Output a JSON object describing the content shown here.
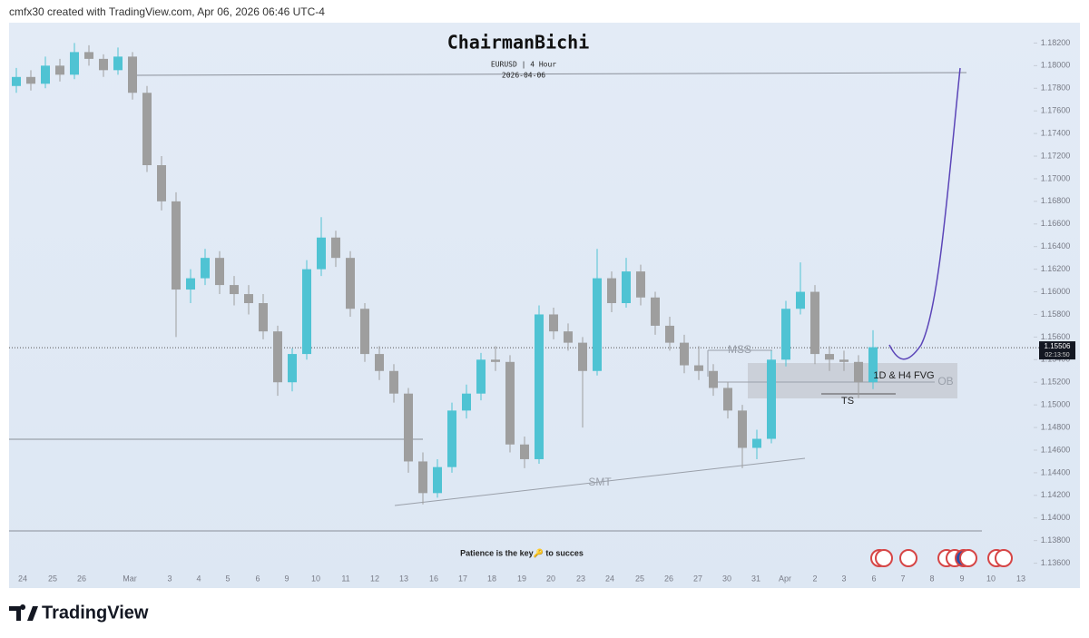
{
  "header": "cmfx30 created with TradingView.com, Apr 06, 2026 06:46 UTC-4",
  "footer": "TradingView",
  "chart_data": {
    "type": "candlestick",
    "title": "ChairmanBichi",
    "subtitle": "EURUSD | 4 Hour",
    "date": "2026-04-06",
    "caption": "Patience is the key🔑 to succes",
    "annotations": [
      "MSS",
      "1D & H4 FVG",
      "OB",
      "TS",
      "SMT"
    ],
    "up_color": "#4fc3d3",
    "down_color": "#9e9e9e",
    "current_price": {
      "value": 1.15506,
      "label": "1.15506"
    },
    "countdown": "02:13:50",
    "ylim": [
      1.1338,
      1.1838
    ],
    "yticks": [
      {
        "value": 1.182,
        "label": "1.18200"
      },
      {
        "value": 1.18,
        "label": "1.18000"
      },
      {
        "value": 1.178,
        "label": "1.17800"
      },
      {
        "value": 1.176,
        "label": "1.17600"
      },
      {
        "value": 1.174,
        "label": "1.17400"
      },
      {
        "value": 1.172,
        "label": "1.17200"
      },
      {
        "value": 1.17,
        "label": "1.17000"
      },
      {
        "value": 1.168,
        "label": "1.16800"
      },
      {
        "value": 1.166,
        "label": "1.16600"
      },
      {
        "value": 1.164,
        "label": "1.16400"
      },
      {
        "value": 1.162,
        "label": "1.16200"
      },
      {
        "value": 1.16,
        "label": "1.16000"
      },
      {
        "value": 1.158,
        "label": "1.15800"
      },
      {
        "value": 1.156,
        "label": "1.15600"
      },
      {
        "value": 1.154,
        "label": "1.15400"
      },
      {
        "value": 1.152,
        "label": "1.15200"
      },
      {
        "value": 1.15,
        "label": "1.15000"
      },
      {
        "value": 1.148,
        "label": "1.14800"
      },
      {
        "value": 1.146,
        "label": "1.14600"
      },
      {
        "value": 1.144,
        "label": "1.14400"
      },
      {
        "value": 1.142,
        "label": "1.14200"
      },
      {
        "value": 1.14,
        "label": "1.14000"
      },
      {
        "value": 1.138,
        "label": "1.13800"
      },
      {
        "value": 1.136,
        "label": "1.13600"
      }
    ],
    "x_labels": [
      "24",
      "25",
      "26",
      "Mar",
      "3",
      "4",
      "5",
      "6",
      "9",
      "10",
      "11",
      "12",
      "13",
      "16",
      "17",
      "18",
      "19",
      "20",
      "23",
      "24",
      "25",
      "26",
      "27",
      "30",
      "31",
      "Apr",
      "2",
      "3",
      "6",
      "7",
      "8",
      "9",
      "10",
      "13"
    ],
    "candles": [
      [
        1.1782,
        1.1798,
        1.1776,
        1.179
      ],
      [
        1.179,
        1.1796,
        1.1778,
        1.1784
      ],
      [
        1.1784,
        1.1808,
        1.178,
        1.18
      ],
      [
        1.18,
        1.1806,
        1.1786,
        1.1792
      ],
      [
        1.1792,
        1.182,
        1.1788,
        1.1812
      ],
      [
        1.1812,
        1.1818,
        1.18,
        1.1806
      ],
      [
        1.1806,
        1.181,
        1.179,
        1.1796
      ],
      [
        1.1796,
        1.1816,
        1.1792,
        1.1808
      ],
      [
        1.1808,
        1.1812,
        1.177,
        1.1776
      ],
      [
        1.1776,
        1.1782,
        1.1706,
        1.1712
      ],
      [
        1.1712,
        1.172,
        1.1672,
        1.168
      ],
      [
        1.168,
        1.1688,
        1.156,
        1.1602
      ],
      [
        1.1602,
        1.162,
        1.159,
        1.1612
      ],
      [
        1.1612,
        1.1638,
        1.1606,
        1.163
      ],
      [
        1.163,
        1.1636,
        1.1598,
        1.1606
      ],
      [
        1.1606,
        1.1614,
        1.1588,
        1.1598
      ],
      [
        1.1598,
        1.1606,
        1.158,
        1.159
      ],
      [
        1.159,
        1.1598,
        1.1558,
        1.1565
      ],
      [
        1.1565,
        1.157,
        1.1508,
        1.152
      ],
      [
        1.152,
        1.155,
        1.1512,
        1.1545
      ],
      [
        1.1545,
        1.1628,
        1.154,
        1.162
      ],
      [
        1.162,
        1.1666,
        1.1614,
        1.1648
      ],
      [
        1.1648,
        1.1654,
        1.1622,
        1.163
      ],
      [
        1.163,
        1.1636,
        1.1578,
        1.1585
      ],
      [
        1.1585,
        1.159,
        1.1538,
        1.1545
      ],
      [
        1.1545,
        1.1552,
        1.1522,
        1.153
      ],
      [
        1.153,
        1.1536,
        1.1502,
        1.151
      ],
      [
        1.151,
        1.1515,
        1.144,
        1.145
      ],
      [
        1.145,
        1.1458,
        1.1412,
        1.1422
      ],
      [
        1.1422,
        1.1452,
        1.1418,
        1.1445
      ],
      [
        1.1445,
        1.1502,
        1.144,
        1.1495
      ],
      [
        1.1495,
        1.1518,
        1.1488,
        1.151
      ],
      [
        1.151,
        1.1546,
        1.1504,
        1.154
      ],
      [
        1.154,
        1.1552,
        1.153,
        1.1538
      ],
      [
        1.1538,
        1.1544,
        1.1458,
        1.1465
      ],
      [
        1.1465,
        1.1472,
        1.1444,
        1.1452
      ],
      [
        1.1452,
        1.1588,
        1.1448,
        1.158
      ],
      [
        1.158,
        1.1586,
        1.1558,
        1.1565
      ],
      [
        1.1565,
        1.1572,
        1.1548,
        1.1555
      ],
      [
        1.1555,
        1.156,
        1.148,
        1.153
      ],
      [
        1.153,
        1.1638,
        1.1526,
        1.1612
      ],
      [
        1.1612,
        1.1618,
        1.1582,
        1.159
      ],
      [
        1.159,
        1.163,
        1.1586,
        1.1618
      ],
      [
        1.1618,
        1.1624,
        1.1588,
        1.1595
      ],
      [
        1.1595,
        1.16,
        1.1562,
        1.157
      ],
      [
        1.157,
        1.1578,
        1.1548,
        1.1555
      ],
      [
        1.1555,
        1.1562,
        1.1528,
        1.1535
      ],
      [
        1.1535,
        1.1552,
        1.1522,
        1.153
      ],
      [
        1.153,
        1.1536,
        1.1508,
        1.1515
      ],
      [
        1.1515,
        1.152,
        1.1488,
        1.1495
      ],
      [
        1.1495,
        1.15,
        1.1444,
        1.1462
      ],
      [
        1.1462,
        1.1478,
        1.1452,
        1.147
      ],
      [
        1.147,
        1.1548,
        1.1466,
        1.154
      ],
      [
        1.154,
        1.1592,
        1.1534,
        1.1585
      ],
      [
        1.1585,
        1.1626,
        1.158,
        1.16
      ],
      [
        1.16,
        1.1606,
        1.1536,
        1.1545
      ],
      [
        1.1545,
        1.1552,
        1.153,
        1.154
      ],
      [
        1.154,
        1.1548,
        1.153,
        1.1538
      ],
      [
        1.1538,
        1.1544,
        1.1506,
        1.152
      ],
      [
        1.152,
        1.1566,
        1.1514,
        1.1551
      ]
    ]
  }
}
